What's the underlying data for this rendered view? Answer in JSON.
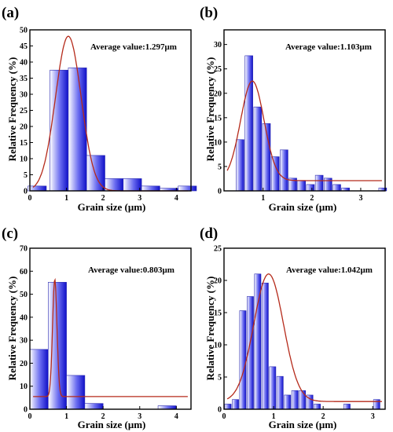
{
  "chart_data": [
    {
      "panel_label": "(a)",
      "type": "bar",
      "annotation": "Average value:1.297μm",
      "xlabel": "Grain size (μm)",
      "ylabel": "Relative Frequency (%)",
      "xlim": [
        0,
        4.4
      ],
      "ylim": [
        0,
        50
      ],
      "xticks": [
        0,
        1,
        2,
        3,
        4
      ],
      "yticks": [
        0,
        5,
        10,
        15,
        20,
        25,
        30,
        35,
        40,
        45,
        50
      ],
      "bar_width": 0.5,
      "x": [
        0.2,
        0.8,
        1.3,
        1.8,
        2.3,
        2.8,
        3.3,
        3.8,
        4.3
      ],
      "values": [
        1.5,
        37.5,
        38.2,
        11.0,
        3.8,
        3.8,
        1.5,
        0.8,
        1.5
      ],
      "fit": {
        "peak": 48,
        "center": 1.05,
        "sigma": 0.35,
        "baseline": 0
      }
    },
    {
      "panel_label": "(b)",
      "type": "bar",
      "annotation": "Average value:1.103μm",
      "xlabel": "Grain size (μm)",
      "ylabel": "Relative Frequency (%)",
      "xlim": [
        0.2,
        3.5
      ],
      "ylim": [
        0,
        33
      ],
      "xticks": [
        1,
        2,
        3
      ],
      "yticks": [
        0,
        5,
        10,
        15,
        20,
        25,
        30
      ],
      "bar_width": 0.16,
      "x": [
        0.53,
        0.71,
        0.89,
        1.07,
        1.25,
        1.43,
        1.61,
        1.79,
        1.97,
        2.15,
        2.33,
        2.51,
        2.69,
        2.87,
        3.05,
        3.45
      ],
      "values": [
        10.5,
        27.7,
        17.2,
        13.8,
        7.0,
        8.4,
        2.6,
        2.1,
        1.3,
        3.2,
        2.6,
        1.3,
        0.6,
        0,
        0,
        0.6
      ],
      "fit": {
        "peak": 22.5,
        "center": 0.78,
        "sigma": 0.24,
        "baseline": 2.1
      }
    },
    {
      "panel_label": "(c)",
      "type": "bar",
      "annotation": "Average value:0.803μm",
      "xlabel": "Grain size (μm)",
      "ylabel": "Relative Frequency (%)",
      "xlim": [
        0,
        4.4
      ],
      "ylim": [
        0,
        70
      ],
      "xticks": [
        0,
        1,
        2,
        3,
        4
      ],
      "yticks": [
        0,
        10,
        20,
        30,
        40,
        50,
        60,
        70
      ],
      "bar_width": 0.5,
      "x": [
        0.25,
        0.75,
        1.25,
        1.75,
        3.75
      ],
      "values": [
        26.0,
        55.2,
        14.7,
        2.5,
        1.5
      ],
      "fit": {
        "peak": 56.5,
        "center": 0.68,
        "sigma": 0.06,
        "baseline": 5.5
      }
    },
    {
      "panel_label": "(d)",
      "type": "bar",
      "annotation": "Average value:1.042μm",
      "xlabel": "Grain size (μm)",
      "ylabel": "Relative Frequency (%)",
      "xlim": [
        0,
        3.25
      ],
      "ylim": [
        0,
        25
      ],
      "xticks": [
        0,
        1,
        2,
        3
      ],
      "yticks": [
        0,
        5,
        10,
        15,
        20,
        25
      ],
      "bar_width": 0.13,
      "x": [
        0.08,
        0.23,
        0.38,
        0.53,
        0.68,
        0.83,
        0.98,
        1.13,
        1.28,
        1.43,
        1.58,
        1.73,
        1.88,
        2.03,
        2.18,
        2.33,
        2.48,
        2.63,
        2.78,
        2.93,
        3.08
      ],
      "values": [
        0.8,
        1.5,
        15.3,
        17.5,
        21.0,
        19.6,
        6.6,
        5.1,
        2.2,
        2.9,
        2.9,
        2.2,
        0.8,
        0,
        0,
        0,
        0.8,
        0,
        0,
        0,
        1.5
      ],
      "fit": {
        "peak": 21.0,
        "center": 0.9,
        "sigma": 0.3,
        "baseline": 1.2
      }
    }
  ]
}
